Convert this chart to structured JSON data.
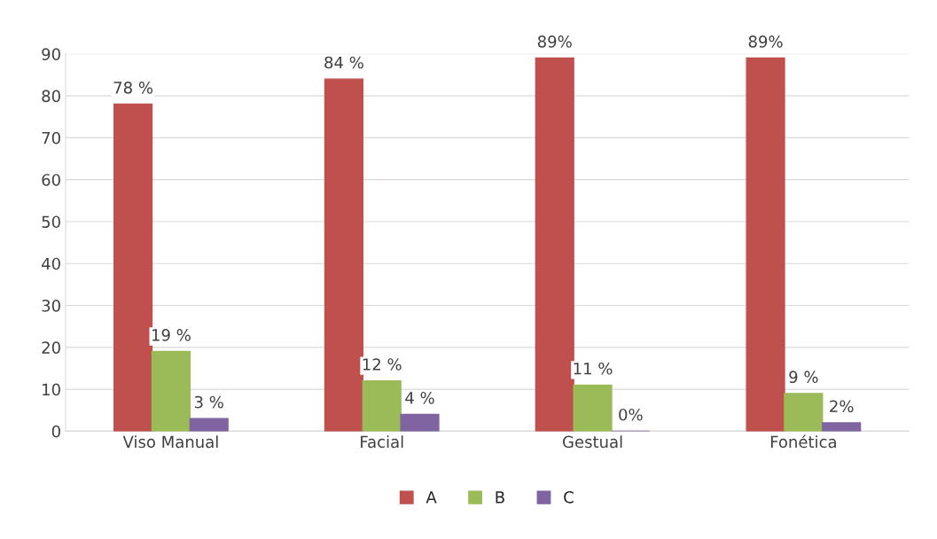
{
  "chart_data": {
    "type": "bar",
    "categories": [
      "Viso Manual",
      "Facial",
      "Gestual",
      "Fonética"
    ],
    "series": [
      {
        "name": "A",
        "color": "#c0504d",
        "values": [
          78,
          84,
          89,
          89
        ],
        "value_labels": [
          "78 %",
          "84 %",
          "89%",
          "89%"
        ]
      },
      {
        "name": "B",
        "color": "#9bbb59",
        "values": [
          19,
          12,
          11,
          9
        ],
        "value_labels": [
          "19 %",
          "12 %",
          "11 %",
          "9 %"
        ]
      },
      {
        "name": "C",
        "color": "#8064a2",
        "values": [
          3,
          4,
          0,
          2
        ],
        "value_labels": [
          "3 %",
          "4 %",
          "0%",
          "2%"
        ]
      }
    ],
    "ylim": [
      0,
      90
    ],
    "yticks": [
      0,
      10,
      20,
      30,
      40,
      50,
      60,
      70,
      80,
      90
    ],
    "grid": "y",
    "legend": "bottom"
  }
}
